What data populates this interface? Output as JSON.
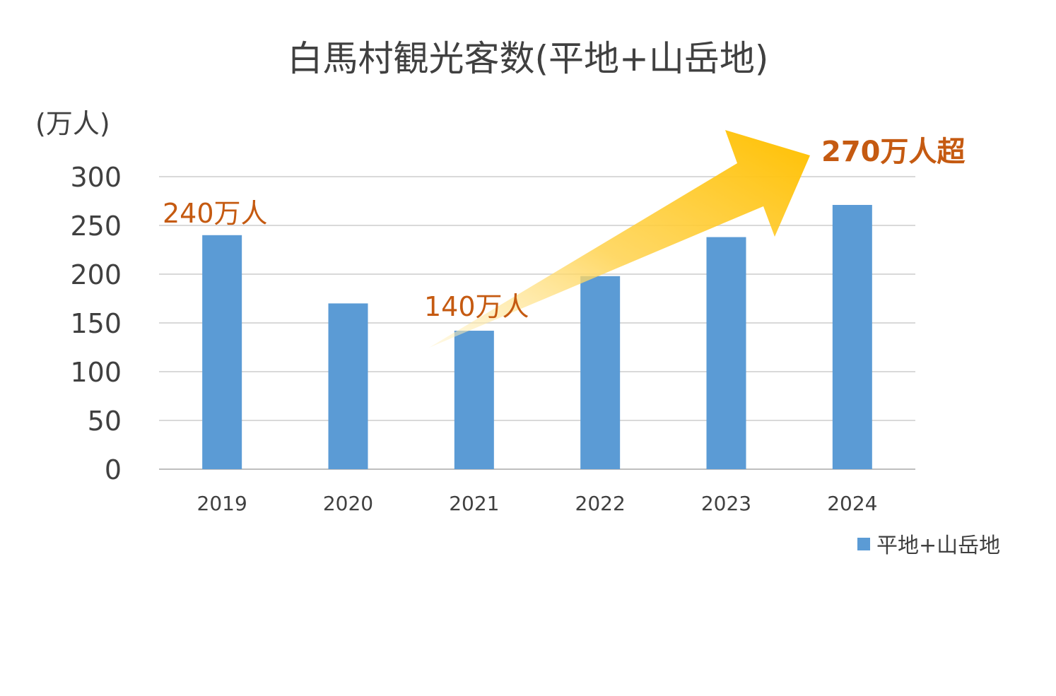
{
  "chart_data": {
    "type": "bar",
    "title": "白馬村観光客数(平地+山岳地)",
    "unit_label": "(万人)",
    "categories": [
      "2019",
      "2020",
      "2021",
      "2022",
      "2023",
      "2024"
    ],
    "series": [
      {
        "name": "平地+山岳地",
        "values": [
          240,
          170,
          142,
          198,
          238,
          271
        ],
        "color": "#5b9bd5"
      }
    ],
    "ylim": [
      0,
      300
    ],
    "yticks": [
      "0",
      "50",
      "100",
      "150",
      "200",
      "250",
      "300"
    ],
    "grid": true,
    "legend_position": "bottom-right",
    "annotations": [
      {
        "text": "240万人",
        "color": "#c55a11"
      },
      {
        "text": "140万人",
        "color": "#c55a11"
      },
      {
        "text": "270万人超",
        "color": "#c55a11"
      }
    ],
    "trend_arrow": {
      "from_category": "2021",
      "to_category": "2024",
      "color": "#ffc000"
    }
  }
}
